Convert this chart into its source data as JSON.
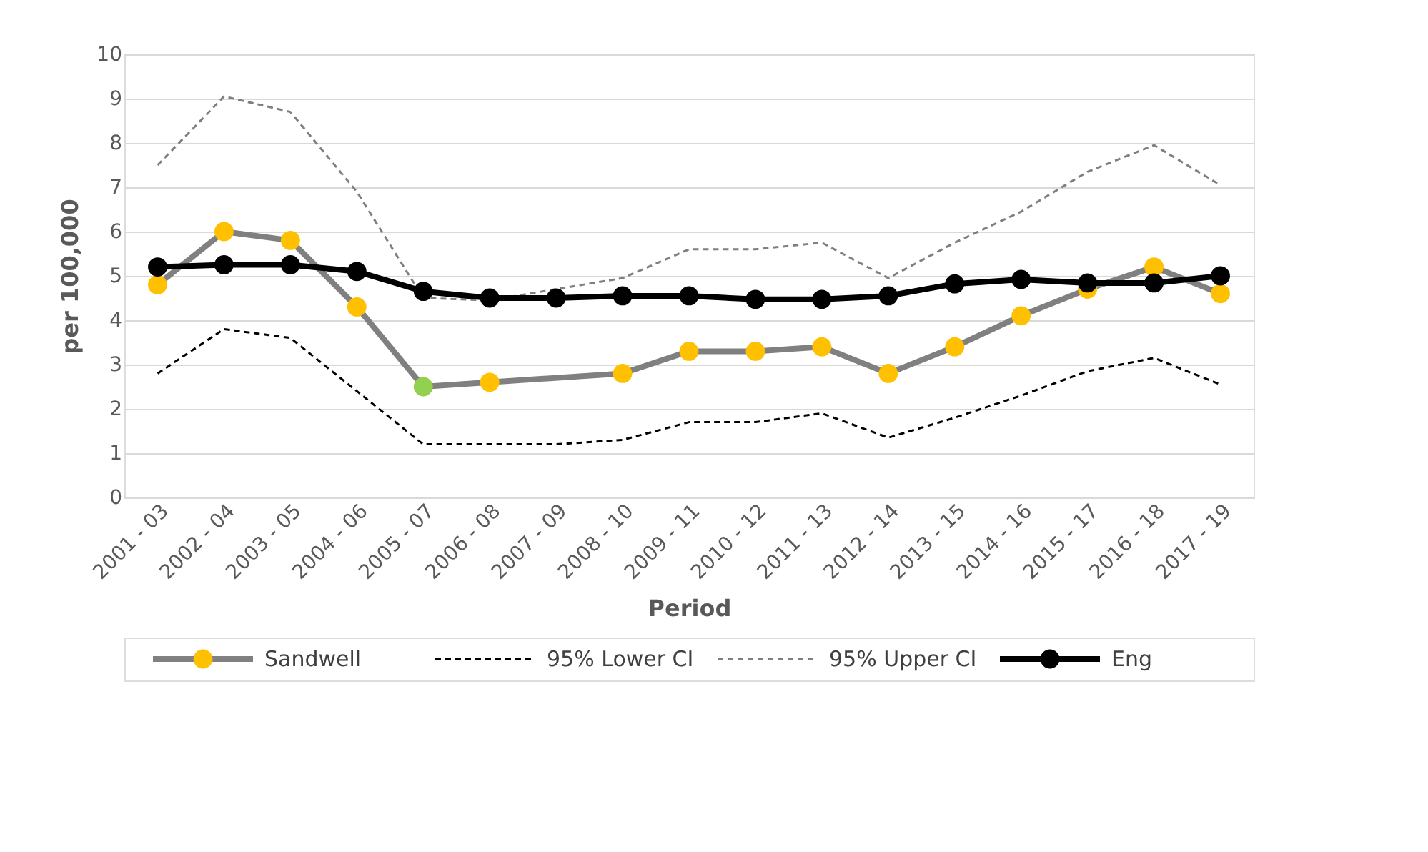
{
  "chart_data": {
    "type": "line",
    "xlabel": "Period",
    "ylabel": "per 100,000",
    "categories": [
      "2001 - 03",
      "2002 - 04",
      "2003 - 05",
      "2004 - 06",
      "2005 - 07",
      "2006 - 08",
      "2007 - 09",
      "2008 - 10",
      "2009 - 11",
      "2010 - 12",
      "2011 - 13",
      "2012 - 14",
      "2013 - 15",
      "2014 - 16",
      "2015 - 17",
      "2016 - 18",
      "2017 - 19"
    ],
    "ylim": [
      0,
      10
    ],
    "yticks": [
      0,
      1,
      2,
      3,
      4,
      5,
      6,
      7,
      8,
      9,
      10
    ],
    "grid": "y",
    "legend": "bottom",
    "series": [
      {
        "name": "Sandwell",
        "color": "#808080",
        "marker": "circle",
        "line_style": "solid",
        "colors": [
          "#ffc000",
          "#ffc000",
          "#ffc000",
          "#ffc000",
          "#92d050",
          "#ffc000",
          null,
          "#ffc000",
          "#ffc000",
          "#ffc000",
          "#ffc000",
          "#ffc000",
          "#ffc000",
          "#ffc000",
          "#ffc000",
          "#ffc000",
          "#ffc000"
        ],
        "values": [
          4.8,
          6.0,
          5.8,
          4.3,
          2.5,
          2.6,
          null,
          2.8,
          3.3,
          3.3,
          3.4,
          2.8,
          3.4,
          4.1,
          4.7,
          5.2,
          4.6
        ]
      },
      {
        "name": "95% Lower CI",
        "color": "#000000",
        "marker": "none",
        "line_style": "dashed",
        "values": [
          2.8,
          3.8,
          3.6,
          2.4,
          1.2,
          1.2,
          1.2,
          1.3,
          1.7,
          1.7,
          1.9,
          1.35,
          1.8,
          2.3,
          2.85,
          3.15,
          2.55
        ]
      },
      {
        "name": "95% Upper CI",
        "color": "#7f7f7f",
        "marker": "none",
        "line_style": "dashed",
        "values": [
          7.5,
          9.05,
          8.7,
          6.9,
          4.5,
          4.45,
          4.7,
          4.95,
          5.6,
          5.6,
          5.75,
          4.95,
          5.75,
          6.45,
          7.35,
          7.95,
          7.05
        ]
      },
      {
        "name": "Eng",
        "color": "#000000",
        "marker": "circle",
        "line_style": "solid",
        "values": [
          5.2,
          5.25,
          5.25,
          5.1,
          4.65,
          4.5,
          4.5,
          4.55,
          4.55,
          4.47,
          4.47,
          4.55,
          4.82,
          4.92,
          4.84,
          4.84,
          5.0
        ]
      }
    ]
  }
}
